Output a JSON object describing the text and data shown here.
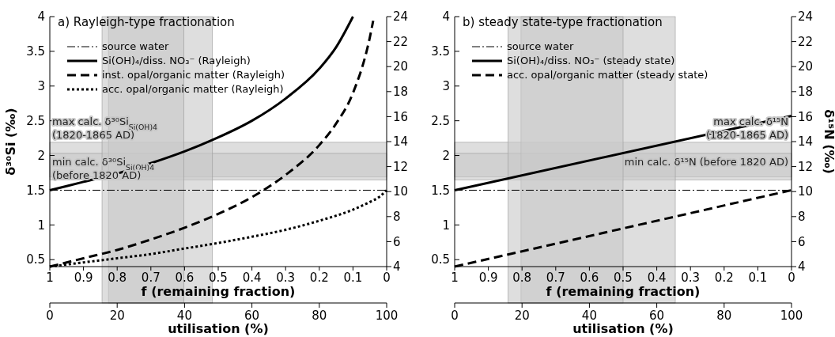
{
  "chart_data": [
    {
      "type": "line",
      "title": "a) Rayleigh-type fractionation",
      "ylabel": "δ³⁰Si (‰)",
      "xlabel": "utilisation (%)",
      "x2label": "f (remaining fraction)",
      "xlim": [
        0,
        100
      ],
      "xticks": [
        0,
        20,
        40,
        60,
        80,
        100
      ],
      "x2lim": [
        1,
        0
      ],
      "x2ticks": [
        1,
        0.9,
        0.8,
        0.7,
        0.6,
        0.5,
        0.4,
        0.3,
        0.2,
        0.1,
        0
      ],
      "ylim": [
        0.4,
        4
      ],
      "yticks": [
        0.5,
        1,
        1.5,
        2,
        2.5,
        3,
        3.5,
        4
      ],
      "y2lim": [
        4,
        24
      ],
      "y2ticks": [
        4,
        6,
        8,
        10,
        12,
        14,
        16,
        18,
        20,
        22,
        24
      ],
      "legend": "top left",
      "grid": false,
      "series": [
        {
          "name": "Si(OH)₄/diss. NO₃⁻ (Rayleigh)",
          "color": "#000000",
          "line_style": "solid",
          "x": [
            0,
            10,
            20,
            30,
            40,
            50,
            60,
            70,
            80,
            85,
            90
          ],
          "values": [
            1.5,
            1.62,
            1.74,
            1.89,
            2.06,
            2.26,
            2.5,
            2.82,
            3.25,
            3.56,
            4.0
          ]
        },
        {
          "name": "inst. opal/organic matter (Rayleigh)",
          "color": "#000000",
          "line_style": "dashed",
          "x": [
            0,
            10,
            20,
            30,
            40,
            50,
            60,
            70,
            80,
            85,
            90,
            95,
            96
          ],
          "values": [
            0.4,
            0.52,
            0.64,
            0.79,
            0.96,
            1.16,
            1.4,
            1.72,
            2.15,
            2.46,
            2.9,
            3.7,
            3.94
          ]
        },
        {
          "name": "acc. opal/organic matter (Rayleigh)",
          "color": "#000000",
          "line_style": "dotted",
          "x": [
            0,
            10,
            20,
            30,
            40,
            50,
            60,
            70,
            80,
            90,
            95,
            98,
            100
          ],
          "values": [
            0.4,
            0.46,
            0.52,
            0.58,
            0.66,
            0.74,
            0.83,
            0.93,
            1.06,
            1.22,
            1.33,
            1.41,
            1.5
          ]
        }
      ],
      "ref_lines": [
        {
          "axis": "y",
          "value": 1.5,
          "label": "source water",
          "color": "#000000",
          "line_style": "dashdot"
        }
      ],
      "bands": [
        {
          "axis": "y",
          "from": 1.69,
          "to": 2.19,
          "color": "#c8c8c8",
          "label": "max calc. δ³⁰Si$_{Si(OH)4}$\n(1820-1865 AD)"
        },
        {
          "axis": "y",
          "from": 1.65,
          "to": 2.03,
          "color": "#c8c8c8",
          "label": "min calc. δ³⁰Si$_{Si(OH)4}$\n(before 1820 AD)"
        },
        {
          "axis": "x",
          "from": 17.4,
          "to": 48.3,
          "color": "#c8c8c8"
        },
        {
          "axis": "x",
          "from": 15.5,
          "to": 39.8,
          "color": "#c8c8c8"
        }
      ]
    },
    {
      "type": "line",
      "title": "b) steady state-type fractionation",
      "y2label": "δ¹⁵N (‰)",
      "xlabel": "utilisation (%)",
      "x2label": "f (remaining fraction)",
      "xlim": [
        0,
        100
      ],
      "xticks": [
        0,
        20,
        40,
        60,
        80,
        100
      ],
      "x2lim": [
        1,
        0
      ],
      "x2ticks": [
        1,
        0.9,
        0.8,
        0.7,
        0.6,
        0.5,
        0.4,
        0.3,
        0.2,
        0.1,
        0
      ],
      "ylim": [
        0.4,
        4
      ],
      "yticks": [
        0.5,
        1,
        1.5,
        2,
        2.5,
        3,
        3.5,
        4
      ],
      "y2lim": [
        4,
        24
      ],
      "y2ticks": [
        4,
        6,
        8,
        10,
        12,
        14,
        16,
        18,
        20,
        22,
        24
      ],
      "legend": "top left",
      "grid": false,
      "series": [
        {
          "name": "Si(OH)₄/diss. NO₃⁻ (steady state)",
          "color": "#000000",
          "line_style": "solid",
          "x": [
            0,
            100
          ],
          "values": [
            1.5,
            2.57
          ]
        },
        {
          "name": "acc. opal/organic matter (steady state)",
          "color": "#000000",
          "line_style": "dashed",
          "x": [
            0,
            100
          ],
          "values": [
            0.4,
            1.5
          ]
        }
      ],
      "ref_lines": [
        {
          "axis": "y",
          "value": 1.5,
          "label": "source water",
          "color": "#000000",
          "line_style": "dashdot"
        }
      ],
      "bands": [
        {
          "axis": "y",
          "from": 1.69,
          "to": 2.19,
          "color": "#c8c8c8",
          "label": "max calc. δ¹⁵N\n(1820-1865 AD)"
        },
        {
          "axis": "y",
          "from": 1.65,
          "to": 2.03,
          "color": "#c8c8c8",
          "label": "min calc. δ¹⁵N (before 1820 AD)"
        },
        {
          "axis": "x",
          "from": 19.7,
          "to": 65.5,
          "color": "#c8c8c8"
        },
        {
          "axis": "x",
          "from": 15.8,
          "to": 50,
          "color": "#c8c8c8"
        }
      ]
    }
  ]
}
